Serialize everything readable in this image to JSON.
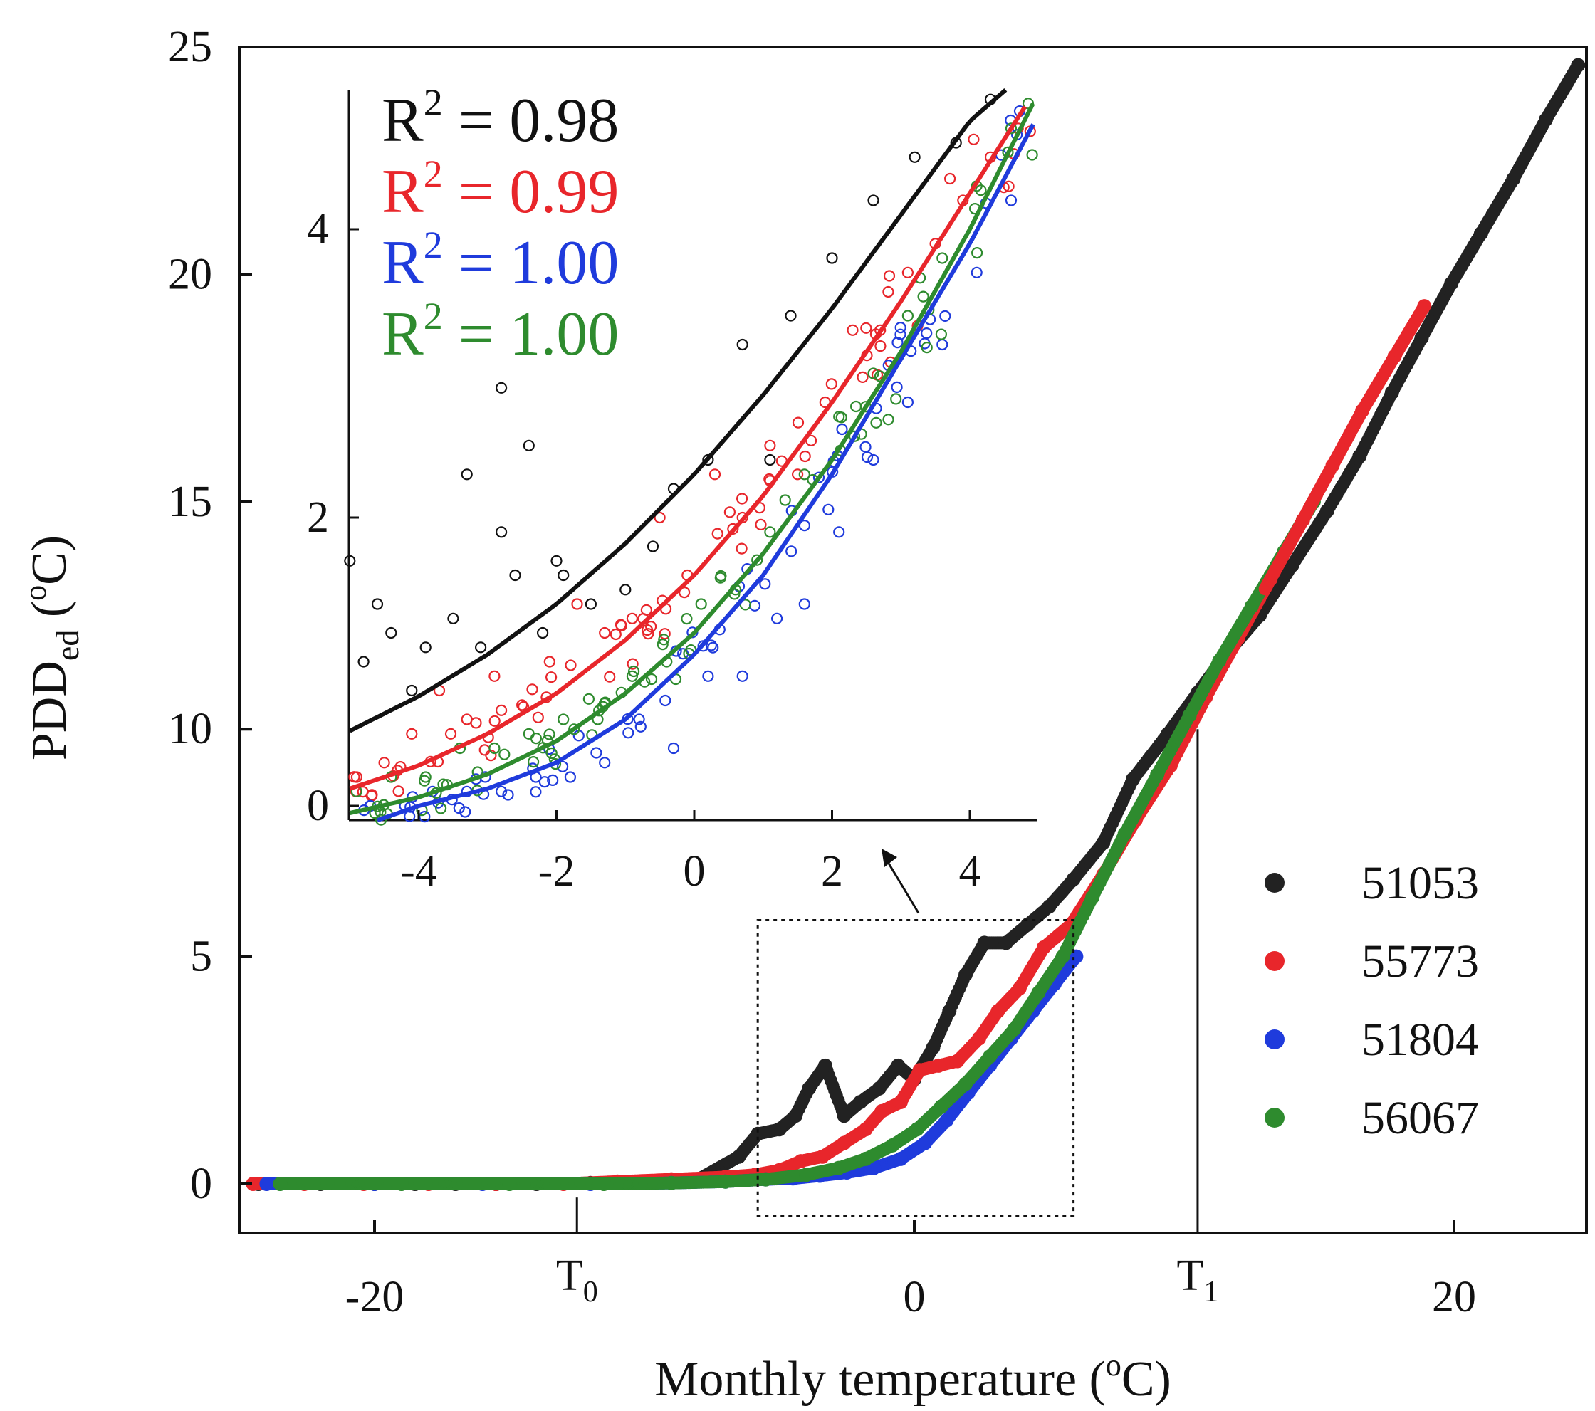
{
  "chart_data": [
    {
      "type": "scatter",
      "title": "",
      "xlabel": "Monthly temperature (°C)",
      "ylabel": "PDDed (°C)",
      "xlim": [
        -25,
        25
      ],
      "ylim": [
        -1,
        25
      ],
      "x_ticks": [
        -20,
        0,
        20
      ],
      "y_ticks": [
        0,
        5,
        10,
        15,
        20,
        25
      ],
      "markers": [
        {
          "label": "T0",
          "x": -12.5
        },
        {
          "label": "T1",
          "x": 10.5,
          "y": 10
        }
      ],
      "zoom_box": {
        "x": [
          -5.8,
          5.9
        ],
        "y": [
          -0.7,
          5.8
        ]
      },
      "legend_position": "bottom-right",
      "series": [
        {
          "name": "51053",
          "color": "#222222",
          "x": [
            -24.3,
            -22.0,
            -20.0,
            -18.5,
            -17.0,
            -15.5,
            -14.0,
            -12.0,
            -10.0,
            -8.0,
            -6.5,
            -5.8,
            -5.0,
            -4.4,
            -3.9,
            -3.3,
            -2.6,
            -2.0,
            -1.3,
            -0.6,
            0.0,
            0.7,
            1.3,
            1.9,
            2.6,
            3.4,
            4.2,
            5.0,
            5.9,
            7.0,
            8.1,
            9.4,
            10.5,
            11.5,
            12.8,
            14.0,
            15.3,
            16.5,
            17.7,
            18.8,
            19.9,
            21.0,
            22.2,
            23.4,
            24.6
          ],
          "y": [
            0.0,
            0.0,
            0.0,
            0.0,
            0.0,
            0.0,
            0.0,
            0.02,
            0.05,
            0.1,
            0.6,
            1.1,
            1.2,
            1.5,
            2.1,
            2.6,
            1.5,
            1.8,
            2.1,
            2.6,
            2.3,
            3.0,
            3.8,
            4.6,
            5.3,
            5.3,
            5.7,
            6.1,
            6.7,
            7.5,
            8.9,
            9.9,
            10.8,
            11.6,
            12.5,
            13.6,
            14.8,
            16.0,
            17.4,
            18.6,
            19.8,
            20.9,
            22.1,
            23.4,
            24.6
          ]
        },
        {
          "name": "55773",
          "color": "#e8262b",
          "x": [
            -24.5,
            -22.6,
            -20.4,
            -18.0,
            -15.5,
            -13.0,
            -11.0,
            -9.0,
            -7.0,
            -5.9,
            -5.0,
            -4.2,
            -3.4,
            -2.6,
            -1.8,
            -1.2,
            -0.5,
            0.2,
            0.9,
            1.6,
            2.4,
            3.1,
            3.9,
            4.8,
            5.8,
            7.0,
            8.2,
            9.5,
            10.8,
            12.0,
            13.2,
            14.4,
            15.5,
            16.6,
            17.8,
            18.9
          ],
          "y": [
            0.0,
            0.0,
            0.0,
            0.0,
            0.0,
            0.0,
            0.05,
            0.1,
            0.15,
            0.2,
            0.3,
            0.5,
            0.6,
            0.9,
            1.2,
            1.6,
            1.8,
            2.5,
            2.6,
            2.7,
            3.2,
            3.8,
            4.3,
            5.2,
            5.7,
            6.8,
            8.0,
            9.2,
            10.7,
            12.0,
            13.3,
            14.6,
            15.8,
            17.0,
            18.2,
            19.3
          ]
        },
        {
          "name": "51804",
          "color": "#1f3bdc",
          "x": [
            -24.0,
            -20.0,
            -16.0,
            -12.0,
            -9.0,
            -7.0,
            -5.5,
            -4.5,
            -3.5,
            -2.5,
            -1.5,
            -0.5,
            0.4,
            1.2,
            2.0,
            2.8,
            3.6,
            4.4,
            5.2,
            6.0
          ],
          "y": [
            0.0,
            0.0,
            0.0,
            0.0,
            0.02,
            0.05,
            0.1,
            0.12,
            0.18,
            0.25,
            0.35,
            0.55,
            0.9,
            1.4,
            2.0,
            2.6,
            3.2,
            3.8,
            4.4,
            5.0
          ]
        },
        {
          "name": "56067",
          "color": "#2e8b2e",
          "x": [
            -23.5,
            -19.0,
            -15.0,
            -11.5,
            -9.0,
            -7.0,
            -5.5,
            -4.0,
            -2.8,
            -1.8,
            -0.8,
            0.1,
            1.0,
            1.9,
            2.8,
            3.7,
            4.6,
            5.5,
            6.6,
            7.8,
            9.0,
            10.2,
            11.3,
            12.5,
            13.7,
            14.8
          ],
          "y": [
            0.0,
            0.0,
            0.0,
            0.0,
            0.02,
            0.05,
            0.1,
            0.2,
            0.35,
            0.55,
            0.85,
            1.2,
            1.7,
            2.2,
            2.8,
            3.4,
            4.2,
            5.0,
            6.3,
            7.7,
            9.0,
            10.3,
            11.5,
            12.7,
            13.9,
            15.0
          ]
        }
      ]
    },
    {
      "type": "scatter",
      "title": "",
      "xlabel": "",
      "ylabel": "",
      "xlim": [
        -5,
        5
      ],
      "ylim": [
        -0.1,
        5
      ],
      "x_ticks": [
        -4,
        -2,
        0,
        2,
        4
      ],
      "y_ticks": [
        0,
        2,
        4
      ],
      "annotations": [
        {
          "text": "R² = 0.98",
          "color": "#111111"
        },
        {
          "text": "R² = 0.99",
          "color": "#e8262b"
        },
        {
          "text": "R² = 1.00",
          "color": "#1f3bdc"
        },
        {
          "text": "R² = 1.00",
          "color": "#2e8b2e"
        }
      ],
      "series": [
        {
          "name": "51053",
          "color": "#111111",
          "x": [
            -5.0,
            -4.8,
            -4.6,
            -4.4,
            -4.1,
            -3.9,
            -3.5,
            -3.3,
            -3.1,
            -2.8,
            -2.8,
            -2.6,
            -2.4,
            -2.2,
            -2.0,
            -1.9,
            -1.5,
            -1.0,
            -0.6,
            -0.3,
            0.2,
            0.7,
            1.1,
            1.4,
            2.0,
            2.6,
            3.2,
            3.8,
            4.3
          ],
          "y": [
            1.7,
            1.0,
            1.4,
            1.2,
            0.8,
            1.1,
            1.3,
            2.3,
            1.1,
            1.9,
            2.9,
            1.6,
            2.5,
            1.2,
            1.7,
            1.6,
            1.4,
            1.5,
            1.8,
            2.2,
            2.4,
            3.2,
            2.4,
            3.4,
            3.8,
            4.2,
            4.5,
            4.6,
            4.9
          ]
        },
        {
          "name": "55773",
          "color": "#e8262b",
          "x": [
            -4.9,
            -4.5,
            -4.1,
            -3.7,
            -3.3,
            -2.9,
            -2.5,
            -2.1,
            -1.7,
            -1.3,
            -0.9,
            -0.5,
            -0.1,
            0.3,
            0.7,
            1.1,
            1.5,
            1.9,
            2.3,
            2.7,
            3.1,
            3.5,
            3.9,
            4.3,
            4.7
          ],
          "y": [
            0.2,
            0.3,
            0.5,
            0.8,
            0.6,
            0.9,
            0.7,
            1.0,
            1.4,
            1.2,
            1.3,
            2.0,
            1.6,
            2.3,
            2.0,
            2.5,
            2.3,
            2.8,
            3.3,
            3.3,
            3.7,
            3.9,
            4.2,
            4.5,
            4.7
          ]
        },
        {
          "name": "51804",
          "color": "#1f3bdc",
          "x": [
            -4.7,
            -4.2,
            -3.8,
            -3.3,
            -2.8,
            -2.3,
            -1.8,
            -1.3,
            -0.8,
            -0.3,
            0.2,
            0.7,
            1.2,
            1.6,
            2.1,
            2.6,
            3.1,
            3.6,
            4.1,
            4.6
          ],
          "y": [
            0.0,
            0.0,
            0.1,
            0.1,
            0.1,
            0.2,
            0.2,
            0.3,
            0.6,
            0.4,
            0.9,
            0.9,
            1.3,
            1.4,
            1.9,
            2.4,
            2.8,
            3.2,
            3.7,
            4.2
          ]
        },
        {
          "name": "56067",
          "color": "#2e8b2e",
          "x": [
            -4.9,
            -4.4,
            -3.9,
            -3.4,
            -2.9,
            -2.4,
            -1.9,
            -1.4,
            -0.9,
            -0.4,
            0.1,
            0.6,
            1.1,
            1.6,
            2.1,
            2.6,
            3.1,
            3.6,
            4.1,
            4.6
          ],
          "y": [
            0.1,
            0.2,
            0.2,
            0.4,
            0.4,
            0.5,
            0.6,
            0.6,
            0.9,
            1.0,
            1.4,
            1.5,
            1.9,
            2.3,
            2.7,
            3.0,
            3.4,
            3.8,
            4.3,
            4.7
          ]
        }
      ],
      "fit_lines": [
        {
          "color": "#111111",
          "x": [
            -5,
            -4,
            -3,
            -2,
            -1,
            0,
            1,
            2,
            3,
            4,
            4.6
          ],
          "y": [
            0.52,
            0.76,
            1.05,
            1.4,
            1.82,
            2.3,
            2.85,
            3.45,
            4.1,
            4.75,
            5.0
          ]
        },
        {
          "color": "#e8262b",
          "x": [
            -5,
            -4,
            -3,
            -2,
            -1,
            0,
            1,
            2,
            3,
            4,
            4.8
          ],
          "y": [
            0.12,
            0.28,
            0.5,
            0.78,
            1.15,
            1.6,
            2.15,
            2.8,
            3.5,
            4.25,
            4.85
          ]
        },
        {
          "color": "#1f3bdc",
          "x": [
            -4.6,
            -4,
            -3,
            -2,
            -1,
            0,
            1,
            2,
            3,
            4,
            5
          ],
          "y": [
            -0.1,
            0.0,
            0.12,
            0.3,
            0.6,
            1.05,
            1.6,
            2.3,
            3.1,
            3.9,
            4.8
          ]
        },
        {
          "color": "#2e8b2e",
          "x": [
            -5,
            -4,
            -3,
            -2,
            -1,
            0,
            1,
            2,
            3,
            4,
            5
          ],
          "y": [
            -0.05,
            0.06,
            0.22,
            0.45,
            0.78,
            1.2,
            1.75,
            2.4,
            3.15,
            4.0,
            4.95
          ]
        }
      ]
    }
  ]
}
